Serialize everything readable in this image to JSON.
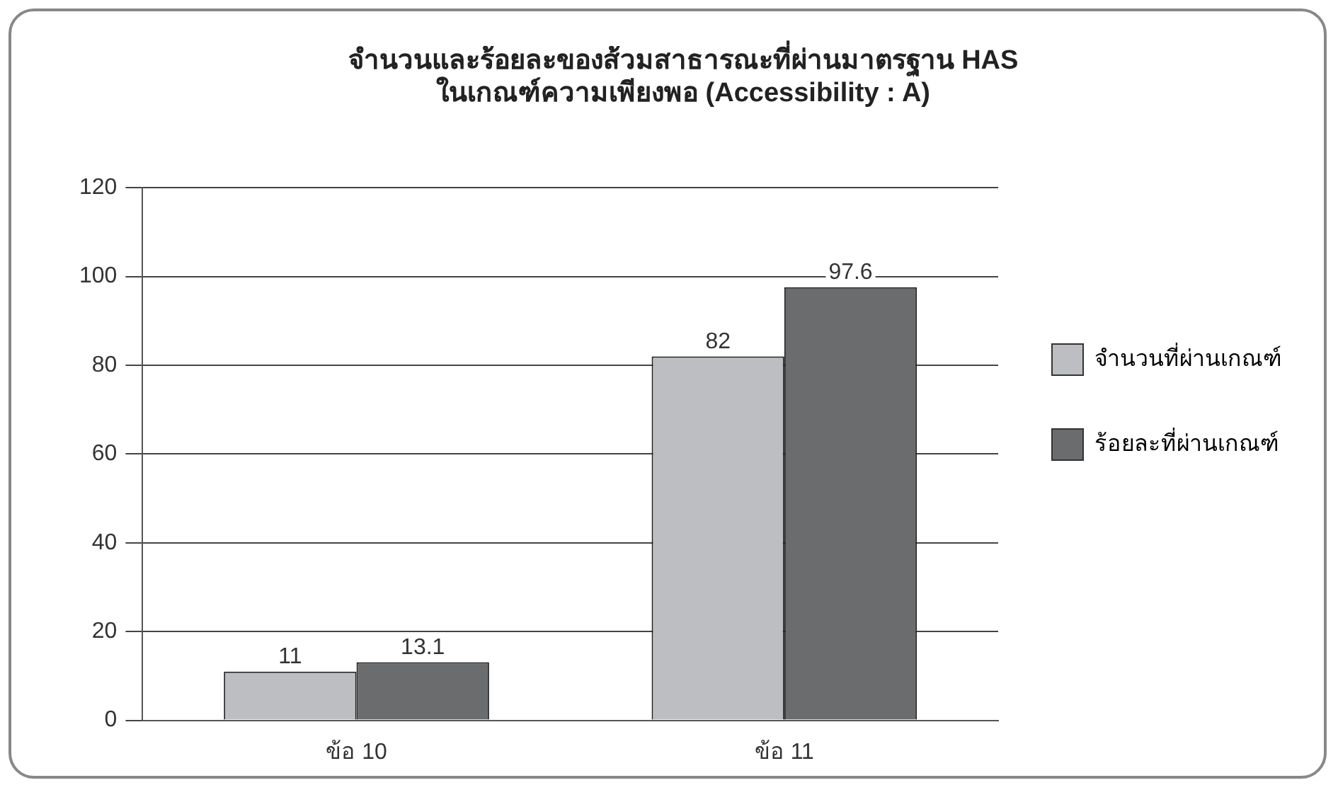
{
  "chart_data": {
    "type": "bar",
    "title": "จำนวนและร้อยละของส้วมสาธารณะที่ผ่านมาตรฐาน HAS\nในเกณฑ์ความเพียงพอ (Accessibility : A)",
    "categories": [
      "ข้อ 10",
      "ข้อ 11"
    ],
    "series": [
      {
        "name": "จำนวนที่ผ่านเกณฑ์",
        "color": "#bdbec2",
        "values": [
          11,
          82
        ]
      },
      {
        "name": "ร้อยละที่ผ่านเกณฑ์",
        "color": "#6b6c6e",
        "values": [
          13.1,
          97.6
        ]
      }
    ],
    "ylim": [
      0,
      120
    ],
    "yticks": [
      0,
      20,
      40,
      60,
      80,
      100,
      120
    ],
    "grid": "y",
    "legend": "right",
    "data_labels": true
  }
}
